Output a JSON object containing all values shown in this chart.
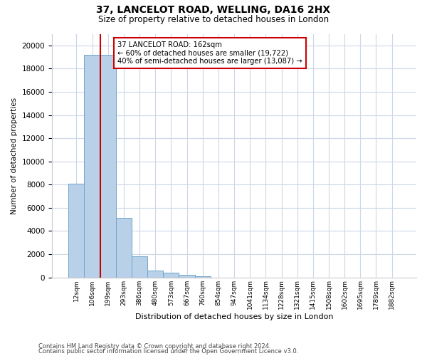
{
  "title1": "37, LANCELOT ROAD, WELLING, DA16 2HX",
  "title2": "Size of property relative to detached houses in London",
  "xlabel": "Distribution of detached houses by size in London",
  "ylabel": "Number of detached properties",
  "bar_labels": [
    "12sqm",
    "106sqm",
    "199sqm",
    "293sqm",
    "386sqm",
    "480sqm",
    "573sqm",
    "667sqm",
    "760sqm",
    "854sqm",
    "947sqm",
    "1041sqm",
    "1134sqm",
    "1228sqm",
    "1321sqm",
    "1415sqm",
    "1508sqm",
    "1602sqm",
    "1695sqm",
    "1789sqm",
    "1882sqm"
  ],
  "bar_values": [
    8100,
    19200,
    19200,
    5100,
    1800,
    600,
    400,
    200,
    120,
    0,
    0,
    0,
    0,
    0,
    0,
    0,
    0,
    0,
    0,
    0,
    0
  ],
  "bar_color": "#b8d0e8",
  "bar_edge_color": "#6ea6cc",
  "vline_x_index": 1.5,
  "vline_color": "#cc0000",
  "annotation_text": "37 LANCELOT ROAD: 162sqm\n← 60% of detached houses are smaller (19,722)\n40% of semi-detached houses are larger (13,087) →",
  "annotation_box_color": "#ffffff",
  "annotation_box_edge": "#cc0000",
  "ylim": [
    0,
    21000
  ],
  "yticks": [
    0,
    2000,
    4000,
    6000,
    8000,
    10000,
    12000,
    14000,
    16000,
    18000,
    20000
  ],
  "footer1": "Contains HM Land Registry data © Crown copyright and database right 2024.",
  "footer2": "Contains public sector information licensed under the Open Government Licence v3.0.",
  "bg_color": "#ffffff",
  "grid_color": "#ccd8e8"
}
